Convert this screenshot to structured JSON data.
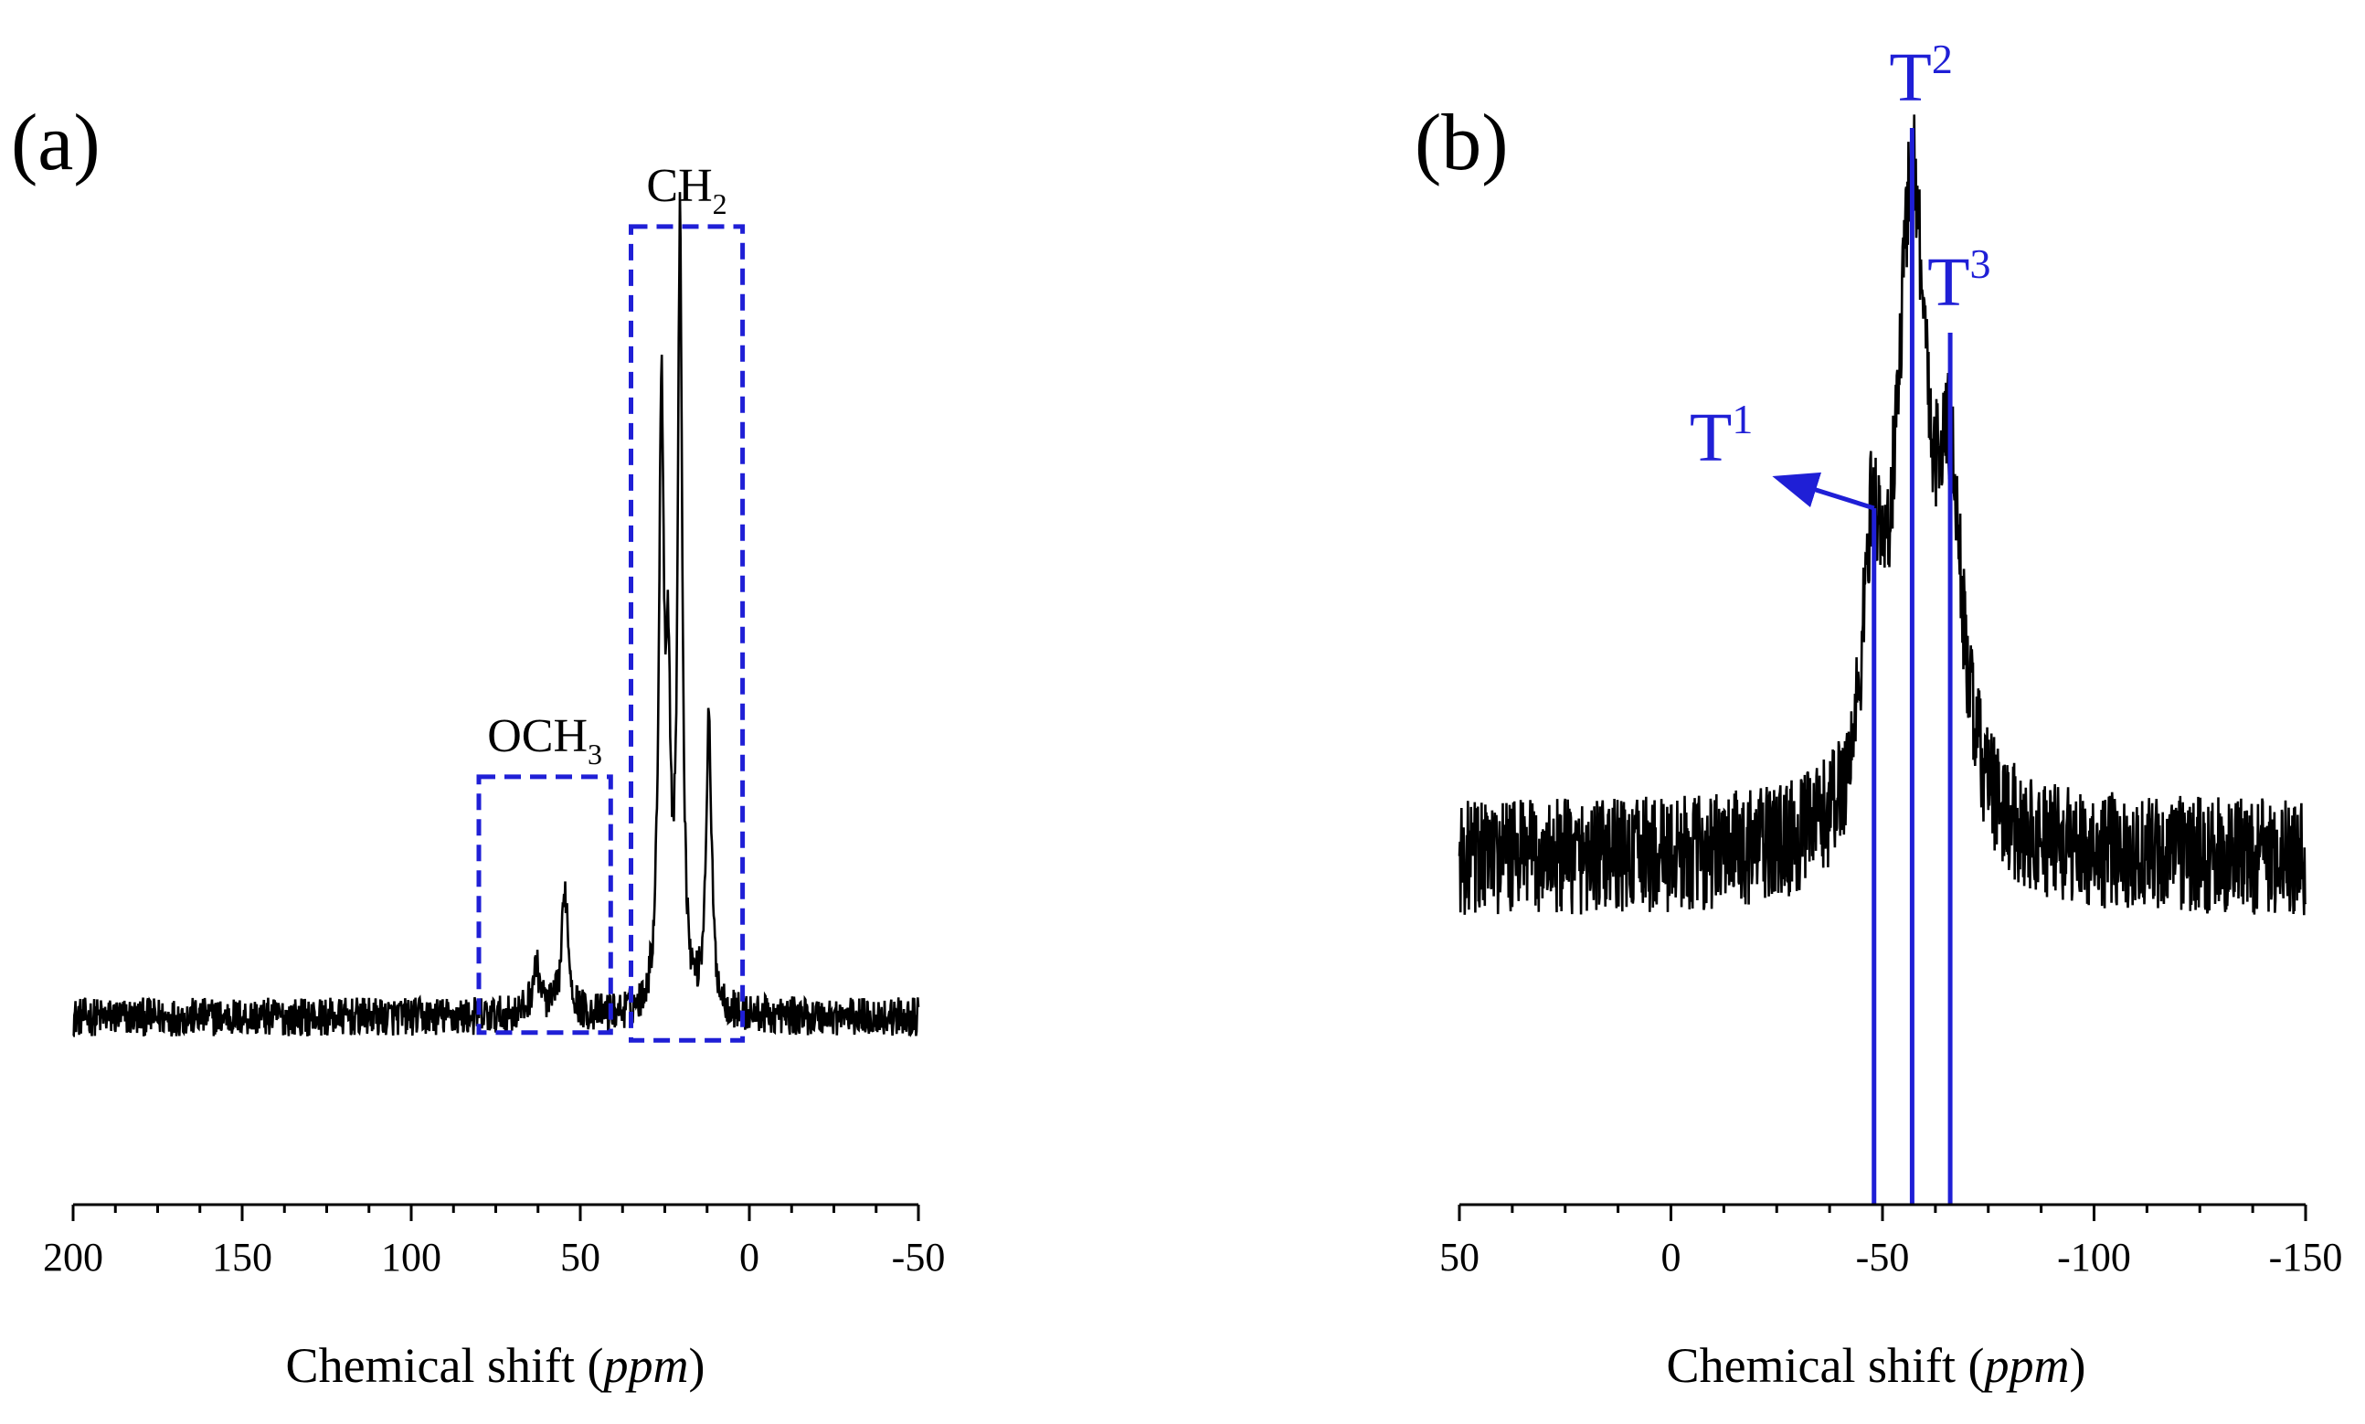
{
  "colors": {
    "spectrum": "#000000",
    "annotation": "#1f1fd6",
    "axis": "#000000"
  },
  "chart_data": [
    {
      "type": "line",
      "panel_label": "(a)",
      "title": "",
      "xlabel_main": "Chemical shift (",
      "xlabel_unit": "ppm",
      "xlabel_close": ")",
      "xlim": [
        200,
        -50
      ],
      "x_ticks": [
        200,
        150,
        100,
        50,
        0,
        -50
      ],
      "x_tick_labels": [
        "200",
        "150",
        "100",
        "50",
        "0",
        "-50"
      ],
      "ylim": [
        -0.15,
        1.1
      ],
      "baseline": 0.0,
      "noise_amplitude": 0.025,
      "peaks": [
        {
          "x": 63,
          "height": 0.06,
          "width": 1.6
        },
        {
          "x": 54.5,
          "height": 0.16,
          "width": 1.2
        },
        {
          "x": 26,
          "height": 0.77,
          "width": 0.9
        },
        {
          "x": 24,
          "height": 0.35,
          "width": 0.8
        },
        {
          "x": 20.5,
          "height": 1.0,
          "width": 0.8
        },
        {
          "x": 12,
          "height": 0.37,
          "width": 1.0
        }
      ],
      "regions": [
        {
          "name": "OCH3",
          "label_main": "OCH",
          "label_sub": "3",
          "x_from": 80,
          "x_to": 41,
          "y_bottom": -0.02,
          "y_top": 0.31
        },
        {
          "name": "CH2",
          "label_main": "CH",
          "label_sub": "2",
          "x_from": 35,
          "x_to": 2,
          "y_bottom": -0.03,
          "y_top": 1.02
        }
      ]
    },
    {
      "type": "line",
      "panel_label": "(b)",
      "title": "",
      "xlabel_main": "Chemical shift (",
      "xlabel_unit": "ppm",
      "xlabel_close": ")",
      "xlim": [
        50,
        -150
      ],
      "x_ticks": [
        50,
        0,
        -50,
        -100,
        -150
      ],
      "x_tick_labels": [
        "50",
        "0",
        "-50",
        "-100",
        "-150"
      ],
      "ylim": [
        -0.35,
        1.0
      ],
      "baseline": 0.0,
      "noise_amplitude": 0.08,
      "peaks": [
        {
          "x": -47.5,
          "height": 0.32,
          "width": 2.5
        },
        {
          "x": -57,
          "height": 0.88,
          "width": 4.5
        },
        {
          "x": -66,
          "height": 0.4,
          "width": 3.5
        }
      ],
      "markers": [
        {
          "name": "T1",
          "label_main": "T",
          "label_sup": "1",
          "x": -48,
          "y_top": 0.48,
          "arrow_to_x": -26,
          "arrow_to_y": 0.52
        },
        {
          "name": "T2",
          "label_main": "T",
          "label_sup": "2",
          "x": -57,
          "y_top": 1.0
        },
        {
          "name": "T3",
          "label_main": "T",
          "label_sup": "3",
          "x": -66,
          "y_top": 0.72
        }
      ]
    }
  ]
}
